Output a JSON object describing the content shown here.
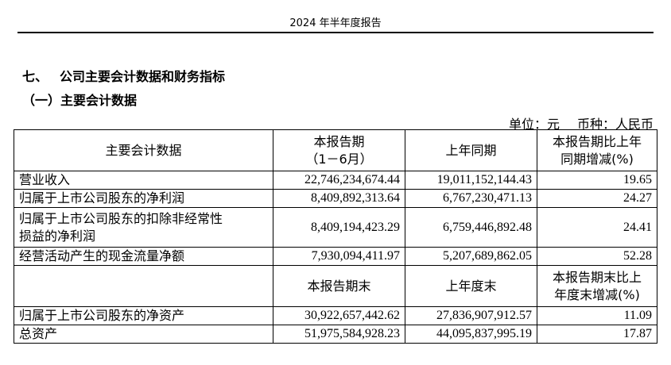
{
  "header": {
    "title": "2024 年半年度报告"
  },
  "section": {
    "number": "七、",
    "title": "公司主要会计数据和财务指标"
  },
  "subsection": {
    "title": "（一）主要会计数据"
  },
  "unit": {
    "unit_text": "单位：元",
    "currency_text": "币种：人民币"
  },
  "table": {
    "header1": {
      "col1": "主要会计数据",
      "col2_line1": "本报告期",
      "col2_line2": "（1－6月）",
      "col3": "上年同期",
      "col4_line1": "本报告期比上年",
      "col4_line2": "同期增减(%)"
    },
    "rows1": [
      {
        "label": "营业收入",
        "current": "22,746,234,674.44",
        "prior": "19,011,152,144.43",
        "change": "19.65"
      },
      {
        "label": "归属于上市公司股东的净利润",
        "current": "8,409,892,313.64",
        "prior": "6,767,230,471.13",
        "change": "24.27"
      },
      {
        "label_line1": "归属于上市公司股东的扣除非经常性",
        "label_line2": "损益的净利润",
        "current": "8,409,194,423.29",
        "prior": "6,759,446,892.48",
        "change": "24.41"
      },
      {
        "label": "经营活动产生的现金流量净额",
        "current": "7,930,094,411.97",
        "prior": "5,207,689,862.05",
        "change": "52.28"
      }
    ],
    "header2": {
      "col1": "",
      "col2": "本报告期末",
      "col3": "上年度末",
      "col4_line1": "本报告期末比上",
      "col4_line2": "年度末增减(%)"
    },
    "rows2": [
      {
        "label": "归属于上市公司股东的净资产",
        "current": "30,922,657,442.62",
        "prior": "27,836,907,912.57",
        "change": "11.09"
      },
      {
        "label": "总资产",
        "current": "51,975,584,928.23",
        "prior": "44,095,837,995.19",
        "change": "17.87"
      }
    ]
  }
}
